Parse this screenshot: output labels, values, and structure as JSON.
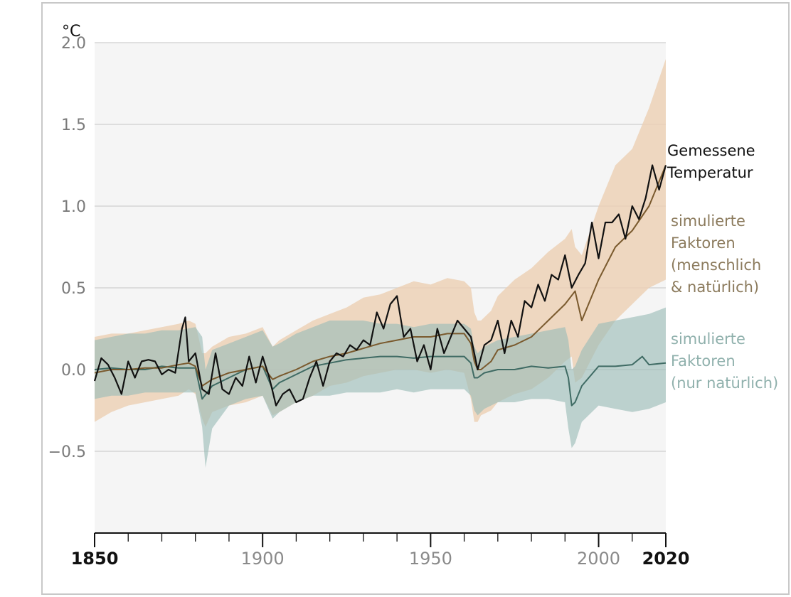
{
  "chart_data": {
    "type": "line",
    "unit_label": "°C",
    "xlim": [
      1850,
      2020
    ],
    "ylim": [
      -1.0,
      2.0
    ],
    "y_ticks": [
      2.0,
      1.5,
      1.0,
      0.5,
      0.0,
      -0.5
    ],
    "y_tick_labels": [
      "2.0",
      "1.5",
      "1.0",
      "0.5",
      "0.0",
      "−0.5"
    ],
    "x_tick_labels": [
      {
        "value": 1850,
        "label": "1850",
        "bold": true
      },
      {
        "value": 1900,
        "label": "1900",
        "bold": false
      },
      {
        "value": 1950,
        "label": "1950",
        "bold": false
      },
      {
        "value": 2000,
        "label": "2000",
        "bold": false
      },
      {
        "value": 2020,
        "label": "2020",
        "bold": true
      }
    ],
    "minor_tick_step": 10,
    "grid": true,
    "legend": [
      {
        "lines": [
          "Gemessene",
          "Temperatur"
        ],
        "color": "#111111"
      },
      {
        "lines": [
          "simulierte",
          "Faktoren",
          "(menschlich",
          "& natürlich)"
        ],
        "color": "#8b7a5c"
      },
      {
        "lines": [
          "simulierte",
          "Faktoren",
          "(nur natürlich)"
        ],
        "color": "#8fb0ac"
      }
    ],
    "colors": {
      "observed": "#111111",
      "human_natural_line": "#7a5a2e",
      "human_natural_band": "#ecd0b3",
      "natural_line": "#3f6b64",
      "natural_band": "#9cbdb8",
      "background": "#f5f5f5",
      "grid": "#cfcfcf"
    },
    "series": [
      {
        "name": "Gemessene Temperatur",
        "x": [
          1850,
          1852,
          1854,
          1856,
          1858,
          1860,
          1862,
          1864,
          1866,
          1868,
          1870,
          1872,
          1874,
          1876,
          1877,
          1878,
          1880,
          1882,
          1884,
          1886,
          1888,
          1890,
          1892,
          1894,
          1896,
          1898,
          1900,
          1902,
          1904,
          1906,
          1908,
          1910,
          1912,
          1914,
          1916,
          1918,
          1920,
          1922,
          1924,
          1926,
          1928,
          1930,
          1932,
          1934,
          1936,
          1938,
          1940,
          1942,
          1944,
          1946,
          1948,
          1950,
          1952,
          1954,
          1956,
          1958,
          1960,
          1962,
          1964,
          1966,
          1968,
          1970,
          1972,
          1974,
          1976,
          1978,
          1980,
          1982,
          1984,
          1986,
          1988,
          1990,
          1992,
          1994,
          1996,
          1998,
          2000,
          2002,
          2004,
          2006,
          2008,
          2010,
          2012,
          2014,
          2016,
          2018,
          2020
        ],
        "y": [
          -0.07,
          0.07,
          0.03,
          -0.05,
          -0.15,
          0.05,
          -0.05,
          0.05,
          0.06,
          0.05,
          -0.03,
          0.0,
          -0.02,
          0.25,
          0.32,
          0.05,
          0.1,
          -0.12,
          -0.15,
          0.1,
          -0.12,
          -0.15,
          -0.05,
          -0.1,
          0.08,
          -0.08,
          0.08,
          -0.05,
          -0.22,
          -0.15,
          -0.12,
          -0.2,
          -0.18,
          -0.05,
          0.05,
          -0.1,
          0.05,
          0.1,
          0.08,
          0.15,
          0.12,
          0.18,
          0.15,
          0.35,
          0.25,
          0.4,
          0.45,
          0.2,
          0.25,
          0.05,
          0.15,
          0.0,
          0.25,
          0.1,
          0.2,
          0.3,
          0.25,
          0.2,
          0.0,
          0.15,
          0.18,
          0.3,
          0.1,
          0.3,
          0.2,
          0.42,
          0.38,
          0.52,
          0.42,
          0.58,
          0.55,
          0.7,
          0.5,
          0.58,
          0.65,
          0.9,
          0.68,
          0.9,
          0.9,
          0.95,
          0.8,
          1.0,
          0.92,
          1.05,
          1.25,
          1.1,
          1.25
        ]
      },
      {
        "name": "simulierte Faktoren (menschlich & natürlich)",
        "x": [
          1850,
          1855,
          1860,
          1865,
          1870,
          1875,
          1878,
          1880,
          1882,
          1885,
          1890,
          1895,
          1900,
          1903,
          1905,
          1910,
          1915,
          1920,
          1925,
          1930,
          1935,
          1940,
          1945,
          1950,
          1955,
          1960,
          1962,
          1963,
          1964,
          1965,
          1968,
          1970,
          1975,
          1980,
          1985,
          1990,
          1993,
          1995,
          2000,
          2005,
          2010,
          2015,
          2020
        ],
        "y": [
          -0.02,
          0.0,
          0.0,
          0.01,
          0.01,
          0.03,
          0.04,
          0.02,
          -0.1,
          -0.06,
          -0.02,
          0.0,
          0.02,
          -0.06,
          -0.04,
          0.0,
          0.05,
          0.08,
          0.1,
          0.13,
          0.16,
          0.18,
          0.2,
          0.2,
          0.22,
          0.22,
          0.16,
          0.05,
          0.0,
          0.0,
          0.05,
          0.12,
          0.15,
          0.2,
          0.3,
          0.4,
          0.48,
          0.3,
          0.55,
          0.75,
          0.85,
          1.0,
          1.25
        ]
      },
      {
        "name": "simulierte Faktoren (nur natürlich)",
        "x": [
          1850,
          1855,
          1860,
          1865,
          1870,
          1875,
          1880,
          1882,
          1885,
          1890,
          1895,
          1900,
          1903,
          1905,
          1910,
          1915,
          1920,
          1925,
          1930,
          1935,
          1940,
          1945,
          1950,
          1955,
          1960,
          1962,
          1963,
          1964,
          1966,
          1970,
          1975,
          1980,
          1985,
          1990,
          1991,
          1992,
          1993,
          1995,
          2000,
          2005,
          2010,
          2013,
          2015,
          2020
        ],
        "y": [
          0.0,
          0.01,
          0.0,
          0.0,
          0.02,
          0.01,
          0.01,
          -0.18,
          -0.1,
          -0.05,
          0.0,
          0.02,
          -0.12,
          -0.08,
          -0.03,
          0.02,
          0.04,
          0.06,
          0.07,
          0.08,
          0.08,
          0.07,
          0.08,
          0.08,
          0.08,
          0.04,
          -0.05,
          -0.05,
          -0.02,
          0.0,
          0.0,
          0.02,
          0.01,
          0.02,
          -0.05,
          -0.22,
          -0.2,
          -0.1,
          0.02,
          0.02,
          0.03,
          0.08,
          0.03,
          0.04
        ]
      }
    ],
    "bands": [
      {
        "name": "simulierte Faktoren (menschlich & natürlich)",
        "x": [
          1850,
          1855,
          1860,
          1865,
          1870,
          1875,
          1878,
          1880,
          1882,
          1883,
          1885,
          1890,
          1895,
          1900,
          1903,
          1905,
          1910,
          1915,
          1920,
          1925,
          1930,
          1935,
          1940,
          1945,
          1950,
          1955,
          1960,
          1962,
          1963,
          1964,
          1965,
          1968,
          1970,
          1975,
          1980,
          1985,
          1990,
          1992,
          1993,
          1995,
          2000,
          2005,
          2010,
          2015,
          2020
        ],
        "upper": [
          0.2,
          0.22,
          0.22,
          0.24,
          0.26,
          0.28,
          0.3,
          0.28,
          0.1,
          0.1,
          0.14,
          0.2,
          0.22,
          0.26,
          0.14,
          0.18,
          0.24,
          0.3,
          0.34,
          0.38,
          0.44,
          0.46,
          0.5,
          0.54,
          0.52,
          0.56,
          0.54,
          0.5,
          0.35,
          0.3,
          0.3,
          0.36,
          0.45,
          0.55,
          0.62,
          0.72,
          0.8,
          0.86,
          0.75,
          0.7,
          1.0,
          1.25,
          1.35,
          1.6,
          1.9
        ],
        "lower": [
          -0.32,
          -0.26,
          -0.22,
          -0.2,
          -0.18,
          -0.16,
          -0.12,
          -0.15,
          -0.3,
          -0.35,
          -0.26,
          -0.22,
          -0.2,
          -0.16,
          -0.28,
          -0.26,
          -0.2,
          -0.16,
          -0.1,
          -0.08,
          -0.04,
          -0.02,
          0.0,
          0.0,
          -0.02,
          0.0,
          -0.02,
          -0.18,
          -0.32,
          -0.32,
          -0.28,
          -0.25,
          -0.2,
          -0.15,
          -0.12,
          -0.05,
          0.05,
          0.08,
          -0.08,
          -0.05,
          0.15,
          0.3,
          0.4,
          0.5,
          0.55
        ]
      },
      {
        "name": "simulierte Faktoren (nur natürlich)",
        "x": [
          1850,
          1855,
          1860,
          1865,
          1870,
          1875,
          1880,
          1882,
          1883,
          1885,
          1890,
          1895,
          1900,
          1903,
          1905,
          1910,
          1915,
          1920,
          1925,
          1930,
          1935,
          1940,
          1945,
          1950,
          1955,
          1960,
          1962,
          1963,
          1964,
          1966,
          1970,
          1975,
          1980,
          1985,
          1990,
          1991,
          1992,
          1993,
          1995,
          2000,
          2005,
          2010,
          2015,
          2020
        ],
        "upper": [
          0.18,
          0.2,
          0.22,
          0.22,
          0.24,
          0.24,
          0.26,
          0.2,
          0.0,
          0.12,
          0.16,
          0.2,
          0.24,
          0.14,
          0.16,
          0.22,
          0.26,
          0.3,
          0.3,
          0.3,
          0.28,
          0.28,
          0.26,
          0.28,
          0.28,
          0.28,
          0.25,
          0.14,
          0.1,
          0.14,
          0.18,
          0.2,
          0.22,
          0.24,
          0.26,
          0.18,
          0.0,
          0.02,
          0.12,
          0.28,
          0.3,
          0.32,
          0.34,
          0.38
        ],
        "lower": [
          -0.18,
          -0.16,
          -0.16,
          -0.14,
          -0.14,
          -0.14,
          -0.14,
          -0.35,
          -0.6,
          -0.36,
          -0.22,
          -0.18,
          -0.16,
          -0.3,
          -0.26,
          -0.2,
          -0.16,
          -0.16,
          -0.14,
          -0.14,
          -0.14,
          -0.12,
          -0.14,
          -0.12,
          -0.12,
          -0.12,
          -0.16,
          -0.25,
          -0.28,
          -0.24,
          -0.2,
          -0.2,
          -0.18,
          -0.18,
          -0.2,
          -0.36,
          -0.48,
          -0.45,
          -0.32,
          -0.22,
          -0.24,
          -0.26,
          -0.24,
          -0.2
        ]
      }
    ]
  }
}
